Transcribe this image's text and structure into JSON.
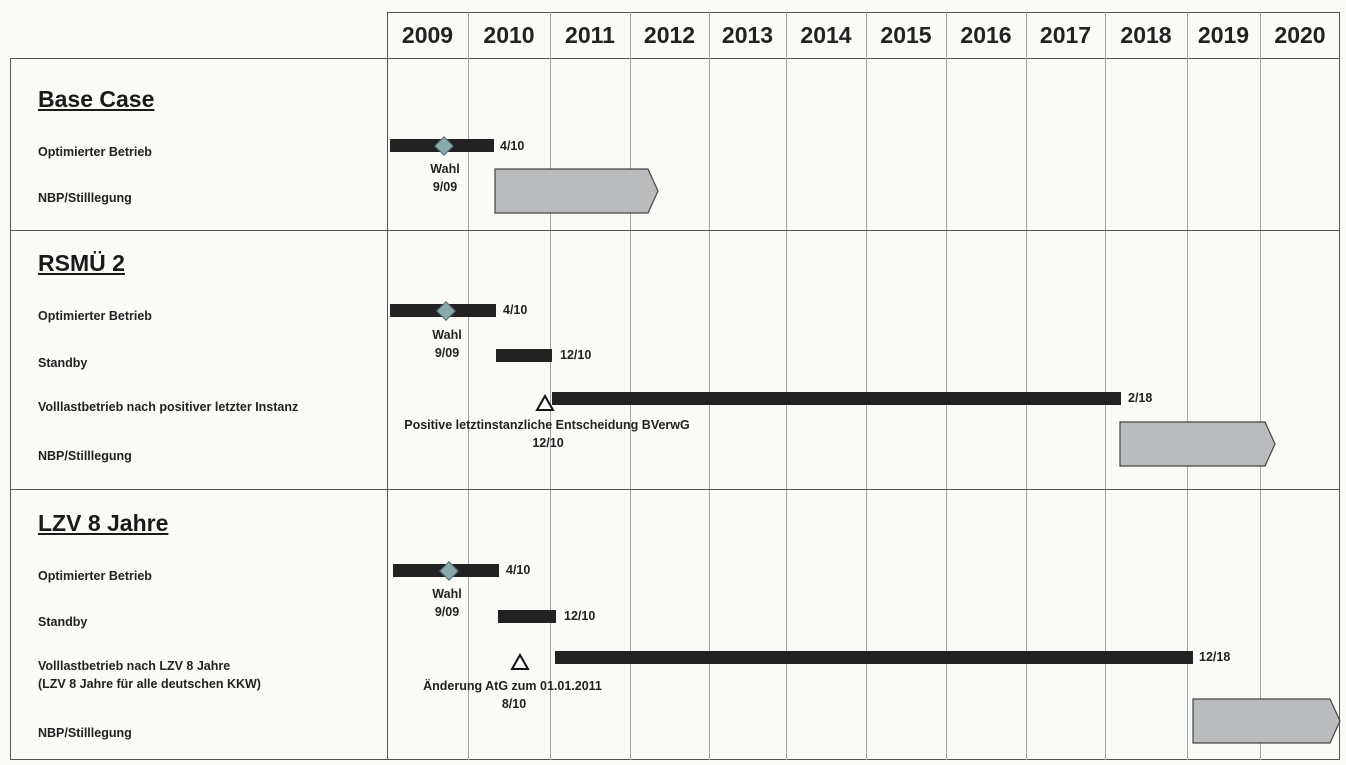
{
  "years": [
    "2009",
    "2010",
    "2011",
    "2012",
    "2013",
    "2014",
    "2015",
    "2016",
    "2017",
    "2018",
    "2019",
    "2020"
  ],
  "scenarios": [
    {
      "title": "Base Case",
      "rows": [
        {
          "label": "Optimierter Betrieb",
          "end_label": "4/10",
          "milestone_label": "Wahl",
          "milestone_date": "9/09"
        },
        {
          "label": "NBP/Stilllegung"
        }
      ]
    },
    {
      "title": "RSMÜ 2",
      "rows": [
        {
          "label": "Optimierter Betrieb",
          "end_label": "4/10",
          "milestone_label": "Wahl",
          "milestone_date": "9/09"
        },
        {
          "label": "Standby",
          "end_label": "12/10"
        },
        {
          "label": "Volllastbetrieb nach positiver letzter Instanz",
          "end_label": "2/18",
          "event_label": "Positive letztinstanzliche Entscheidung BVerwG",
          "event_date": "12/10"
        },
        {
          "label": "NBP/Stilllegung"
        }
      ]
    },
    {
      "title": "LZV 8 Jahre",
      "rows": [
        {
          "label": "Optimierter Betrieb",
          "end_label": "4/10",
          "milestone_label": "Wahl",
          "milestone_date": "9/09"
        },
        {
          "label": "Standby",
          "end_label": "12/10"
        },
        {
          "label": "Volllastbetrieb nach LZV 8 Jahre",
          "label_line2": "(LZV 8 Jahre für alle deutschen KKW)",
          "end_label": "12/18",
          "event_label": "Änderung AtG zum 01.01.2011",
          "event_date": "8/10"
        },
        {
          "label": "NBP/Stilllegung"
        }
      ]
    }
  ],
  "colors": {
    "bar": "#222222",
    "box_fill": "#b9bbbd",
    "milestone": "#8aa0aa"
  }
}
